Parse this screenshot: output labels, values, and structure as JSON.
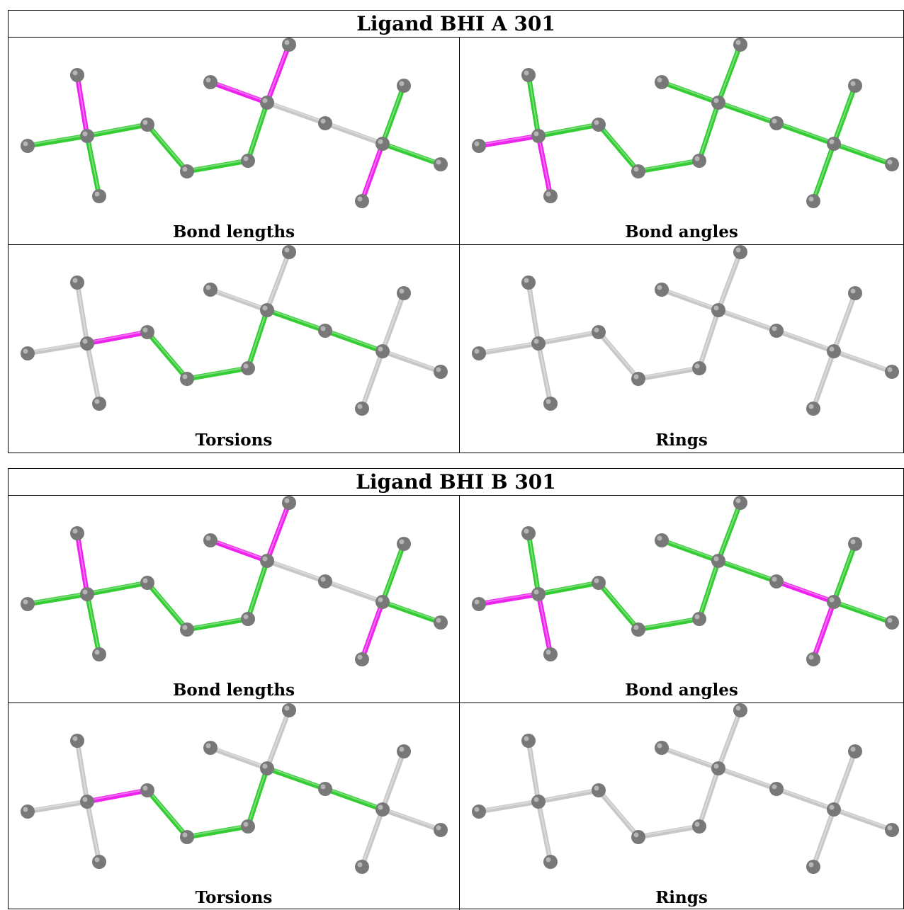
{
  "colors": {
    "green": "#33cc33",
    "magenta": "#ee22ee",
    "grey_bond": "#c8c8c8",
    "atom": "#787878"
  },
  "ligands": [
    {
      "title": "Ligand BHI A 301",
      "panels": [
        {
          "caption": "Bond lengths",
          "colors": [
            "G",
            "M",
            "G",
            "G",
            "G",
            "G",
            "G",
            "M",
            "M",
            "W",
            "W",
            "G",
            "G",
            "M"
          ]
        },
        {
          "caption": "Bond angles",
          "colors": [
            "M",
            "G",
            "M",
            "G",
            "G",
            "G",
            "G",
            "G",
            "G",
            "G",
            "G",
            "G",
            "G",
            "G"
          ]
        },
        {
          "caption": "Torsions",
          "colors": [
            "W",
            "W",
            "W",
            "M",
            "G",
            "G",
            "G",
            "W",
            "W",
            "G",
            "G",
            "W",
            "W",
            "W"
          ]
        },
        {
          "caption": "Rings",
          "colors": [
            "W",
            "W",
            "W",
            "W",
            "W",
            "W",
            "W",
            "W",
            "W",
            "W",
            "W",
            "W",
            "W",
            "W"
          ]
        }
      ]
    },
    {
      "title": "Ligand BHI B 301",
      "panels": [
        {
          "caption": "Bond lengths",
          "colors": [
            "G",
            "M",
            "G",
            "G",
            "G",
            "G",
            "G",
            "M",
            "M",
            "W",
            "W",
            "G",
            "G",
            "M"
          ]
        },
        {
          "caption": "Bond angles",
          "colors": [
            "M",
            "G",
            "M",
            "G",
            "G",
            "G",
            "G",
            "G",
            "G",
            "G",
            "M",
            "G",
            "G",
            "M"
          ]
        },
        {
          "caption": "Torsions",
          "colors": [
            "W",
            "W",
            "W",
            "M",
            "G",
            "G",
            "G",
            "W",
            "W",
            "G",
            "G",
            "W",
            "W",
            "W"
          ]
        },
        {
          "caption": "Rings",
          "colors": [
            "W",
            "W",
            "W",
            "W",
            "W",
            "W",
            "W",
            "W",
            "W",
            "W",
            "W",
            "W",
            "W",
            "W"
          ]
        }
      ]
    }
  ]
}
